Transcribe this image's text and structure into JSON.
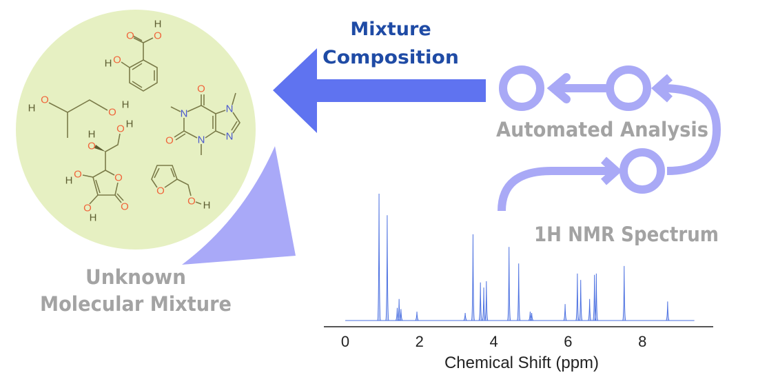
{
  "labels": {
    "mixture_composition_line1": "Mixture",
    "mixture_composition_line2": "Composition",
    "automated_analysis": "Automated Analysis",
    "nmr_spectrum": "1H NMR Spectrum",
    "unknown_mixture_line1": "Unknown",
    "unknown_mixture_line2": "Molecular Mixture"
  },
  "colors": {
    "composition_text": "#1f4ba5",
    "gray_text": "#a3a3a3",
    "main_arrow": "#5f73f0",
    "cycle": "#a9a9f6",
    "mixture_circle": "#e6f0c2",
    "spectrum_line": "#4a6fe0",
    "oxygen": "#f0643a",
    "nitrogen": "#4a58cf"
  },
  "molecule": {
    "atom_symbols": {
      "oxygen": "O",
      "hydrogen": "H",
      "nitrogen": "N"
    }
  },
  "chart_data": {
    "type": "line",
    "xlabel": "Chemical Shift (ppm)",
    "ylabel": "",
    "xlim": [
      0,
      9.4
    ],
    "x_ticks": [
      "0",
      "2",
      "4",
      "6",
      "8"
    ],
    "grid": false,
    "y_axis_shown": false,
    "peaks": [
      {
        "ppm": 0.91,
        "intensity": 100
      },
      {
        "ppm": 1.13,
        "intensity": 83
      },
      {
        "ppm": 1.4,
        "intensity": 10
      },
      {
        "ppm": 1.45,
        "intensity": 17
      },
      {
        "ppm": 1.5,
        "intensity": 9
      },
      {
        "ppm": 1.93,
        "intensity": 7
      },
      {
        "ppm": 3.23,
        "intensity": 6
      },
      {
        "ppm": 3.44,
        "intensity": 68
      },
      {
        "ppm": 3.64,
        "intensity": 30
      },
      {
        "ppm": 3.73,
        "intensity": 26
      },
      {
        "ppm": 3.8,
        "intensity": 31
      },
      {
        "ppm": 4.41,
        "intensity": 58
      },
      {
        "ppm": 4.67,
        "intensity": 45
      },
      {
        "ppm": 4.98,
        "intensity": 7
      },
      {
        "ppm": 5.02,
        "intensity": 6
      },
      {
        "ppm": 5.92,
        "intensity": 13
      },
      {
        "ppm": 6.25,
        "intensity": 37
      },
      {
        "ppm": 6.34,
        "intensity": 32
      },
      {
        "ppm": 6.58,
        "intensity": 17
      },
      {
        "ppm": 6.71,
        "intensity": 36
      },
      {
        "ppm": 6.76,
        "intensity": 37
      },
      {
        "ppm": 7.51,
        "intensity": 43
      },
      {
        "ppm": 8.68,
        "intensity": 15
      }
    ]
  }
}
